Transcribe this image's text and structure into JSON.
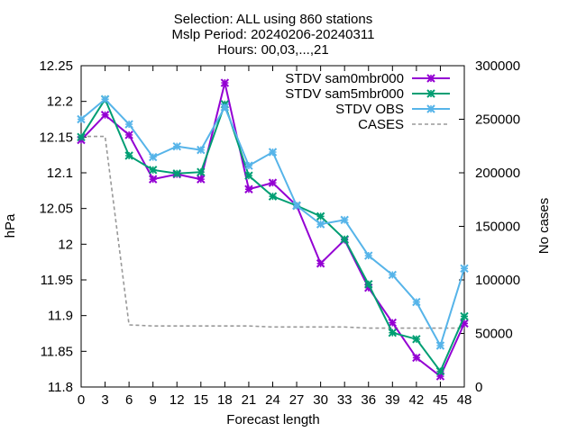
{
  "chart_data": {
    "type": "line",
    "title_lines": [
      "Selection: ALL using   860 stations",
      "Mslp   Period: 20240206-20240311",
      "Hours: 00,03,...,21"
    ],
    "xlabel": "Forecast length",
    "ylabel": "hPa",
    "y2label": "No cases",
    "x": [
      0,
      3,
      6,
      9,
      12,
      15,
      18,
      21,
      24,
      27,
      30,
      33,
      36,
      39,
      42,
      45,
      48
    ],
    "xlim": [
      0,
      48
    ],
    "ylim": [
      11.8,
      12.25
    ],
    "y2lim": [
      0,
      300000
    ],
    "y_ticks": [
      "12.25",
      "12.2",
      "12.15",
      "12.1",
      "12.05",
      "12",
      "11.95",
      "11.9",
      "11.85",
      "11.8"
    ],
    "y2_ticks": [
      "300000",
      "250000",
      "200000",
      "150000",
      "100000",
      "50000",
      "0"
    ],
    "x_ticks": [
      "0",
      "3",
      "6",
      "9",
      "12",
      "15",
      "18",
      "21",
      "24",
      "27",
      "30",
      "33",
      "36",
      "39",
      "42",
      "45",
      "48"
    ],
    "grid": false,
    "legend_position": "top-right",
    "series": [
      {
        "name": "STDV sam0mbr000",
        "color": "#9400d3",
        "marker": "x",
        "axis": "y1",
        "values": [
          12.146,
          12.181,
          12.153,
          12.091,
          12.098,
          12.091,
          12.226,
          12.077,
          12.086,
          12.054,
          11.973,
          12.006,
          11.939,
          11.89,
          11.841,
          11.815,
          11.889
        ]
      },
      {
        "name": "STDV sam5mbr000",
        "color": "#009e73",
        "marker": "x",
        "axis": "y1",
        "values": [
          12.15,
          12.203,
          12.124,
          12.104,
          12.099,
          12.101,
          12.196,
          12.096,
          12.067,
          12.054,
          12.039,
          12.007,
          11.944,
          11.876,
          11.867,
          11.822,
          11.899
        ]
      },
      {
        "name": "STDV OBS",
        "color": "#56b4e9",
        "marker": "x",
        "axis": "y1",
        "values": [
          12.175,
          12.203,
          12.168,
          12.122,
          12.137,
          12.132,
          12.192,
          12.11,
          12.129,
          12.054,
          12.028,
          12.034,
          11.984,
          11.957,
          11.919,
          11.858,
          11.966
        ]
      },
      {
        "name": "CASES",
        "color": "#999999",
        "dash": true,
        "axis": "y2",
        "values": [
          234000,
          234000,
          58000,
          57000,
          57000,
          57000,
          57000,
          57000,
          56000,
          56000,
          56000,
          56000,
          55000,
          55000,
          55000,
          55000,
          55000
        ]
      }
    ]
  }
}
